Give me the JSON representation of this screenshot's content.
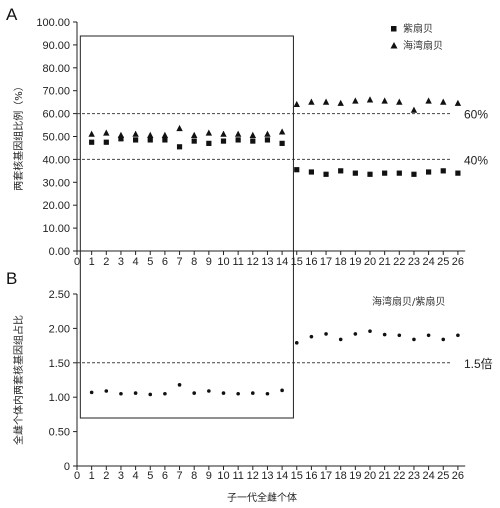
{
  "chart_data": [
    {
      "type": "scatter",
      "panel_label": "A",
      "ylabel": "两套核基因组比例（%）",
      "ylim": [
        0,
        100
      ],
      "yticks": [
        "0.00",
        "10.00",
        "20.00",
        "30.00",
        "40.00",
        "50.00",
        "60.00",
        "70.00",
        "80.00",
        "90.00",
        "100.00"
      ],
      "x_ticks": [
        "0",
        "1",
        "2",
        "3",
        "4",
        "5",
        "6",
        "7",
        "8",
        "9",
        "10",
        "11",
        "12",
        "13",
        "14",
        "15",
        "16",
        "17",
        "18",
        "19",
        "20",
        "21",
        "22",
        "23",
        "24",
        "25",
        "26"
      ],
      "reference_lines": [
        {
          "value": 60,
          "label": "60%"
        },
        {
          "value": 40,
          "label": "40%"
        }
      ],
      "highlight_box_x": [
        0.5,
        14.5
      ],
      "legend_position": "top-right",
      "series": [
        {
          "name": "紫扇贝",
          "marker": "square",
          "x": [
            1,
            2,
            3,
            4,
            5,
            6,
            7,
            8,
            9,
            10,
            11,
            12,
            13,
            14,
            15,
            16,
            17,
            18,
            19,
            20,
            21,
            22,
            23,
            24,
            25,
            26
          ],
          "y": [
            47.5,
            47.5,
            49.0,
            48.5,
            48.5,
            48.5,
            45.5,
            48.0,
            47.0,
            48.0,
            48.5,
            48.0,
            48.5,
            47.0,
            35.5,
            34.5,
            33.5,
            35.0,
            34.0,
            33.5,
            34.0,
            34.0,
            33.5,
            34.5,
            35.0,
            34.0
          ]
        },
        {
          "name": "海湾扇贝",
          "marker": "triangle",
          "x": [
            1,
            2,
            3,
            4,
            5,
            6,
            7,
            8,
            9,
            10,
            11,
            12,
            13,
            14,
            15,
            16,
            17,
            18,
            19,
            20,
            21,
            22,
            23,
            24,
            25,
            26
          ],
          "y": [
            51.0,
            51.5,
            50.5,
            51.0,
            50.5,
            50.5,
            53.5,
            50.5,
            51.5,
            51.0,
            51.0,
            50.5,
            51.0,
            52.0,
            64.0,
            65.0,
            65.0,
            64.5,
            65.5,
            66.0,
            65.5,
            65.0,
            61.5,
            65.5,
            65.0,
            64.5
          ]
        }
      ]
    },
    {
      "type": "scatter",
      "panel_label": "B",
      "ylabel": "全雌个体内两套核基因组占比",
      "xlabel": "子一代全雌个体",
      "ylim": [
        0,
        2.5
      ],
      "yticks": [
        "0",
        "0.50",
        "1.00",
        "1.50",
        "2.00",
        "2.50"
      ],
      "x_ticks": [
        "0",
        "1",
        "2",
        "3",
        "4",
        "5",
        "6",
        "7",
        "8",
        "9",
        "10",
        "11",
        "12",
        "13",
        "14",
        "15",
        "16",
        "17",
        "18",
        "19",
        "20",
        "21",
        "22",
        "23",
        "24",
        "25",
        "26"
      ],
      "reference_lines": [
        {
          "value": 1.5,
          "label": "1.5倍"
        }
      ],
      "highlight_box_x": [
        0.5,
        14.5
      ],
      "annotation": "海湾扇贝/紫扇贝",
      "series": [
        {
          "name": "海湾扇贝/紫扇贝",
          "marker": "dot",
          "x": [
            1,
            2,
            3,
            4,
            5,
            6,
            7,
            8,
            9,
            10,
            11,
            12,
            13,
            14,
            15,
            16,
            17,
            18,
            19,
            20,
            21,
            22,
            23,
            24,
            25,
            26
          ],
          "y": [
            1.07,
            1.09,
            1.05,
            1.06,
            1.04,
            1.05,
            1.18,
            1.06,
            1.09,
            1.06,
            1.05,
            1.06,
            1.05,
            1.1,
            1.79,
            1.88,
            1.92,
            1.84,
            1.92,
            1.96,
            1.91,
            1.9,
            1.84,
            1.9,
            1.84,
            1.9
          ]
        }
      ]
    }
  ]
}
